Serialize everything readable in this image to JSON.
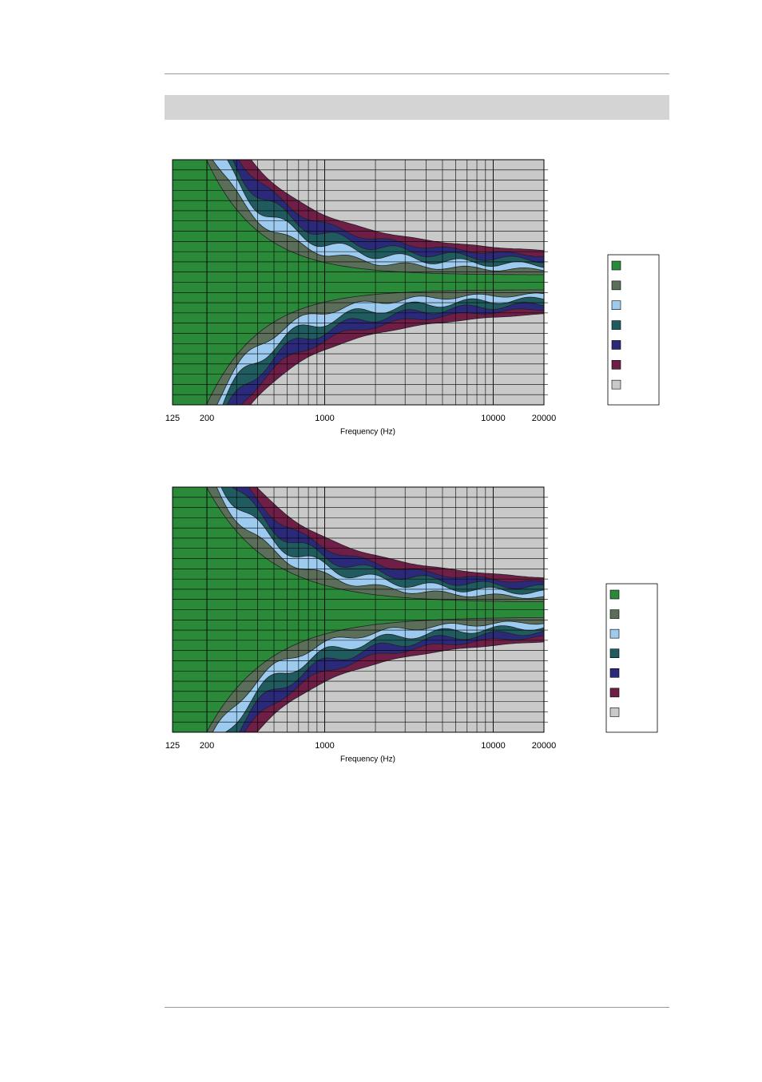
{
  "chart_data": [
    {
      "type": "contour",
      "xlabel": "Frequency (Hz)",
      "xscale": "log",
      "xlim": [
        125,
        20000
      ],
      "xticks": [
        125,
        200,
        1000,
        10000,
        20000
      ],
      "colors": [
        "#2b8a3a",
        "#5b6e59",
        "#9dcbf0",
        "#1f5b5f",
        "#2b2a7a",
        "#6f1f47",
        "#c9c9c9"
      ]
    },
    {
      "type": "contour",
      "xlabel": "Frequency (Hz)",
      "xscale": "log",
      "xlim": [
        125,
        20000
      ],
      "xticks": [
        125,
        200,
        1000,
        10000,
        20000
      ],
      "colors": [
        "#2b8a3a",
        "#5b6e59",
        "#9dcbf0",
        "#1f5b5f",
        "#2b2a7a",
        "#6f1f47",
        "#c9c9c9"
      ]
    }
  ]
}
